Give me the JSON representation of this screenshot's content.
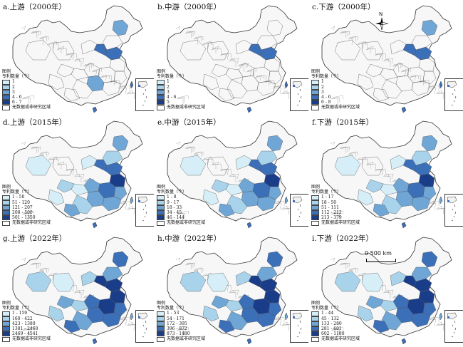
{
  "figure": {
    "panels": [
      {
        "id": "a",
        "title": "a.上游（2000年）",
        "legend_head": [
          "图例",
          "专利数量（个）"
        ],
        "classes": [
          "1",
          "2",
          "3",
          "4 - 6",
          "6 - 7"
        ],
        "nodata": "无数据或非研究区域",
        "level": 0,
        "palette": [
          "#d6eef7",
          "#a8d3eb",
          "#6fa6d6",
          "#3b6fb8",
          "#1a3d8a"
        ]
      },
      {
        "id": "b",
        "title": "b.中游（2000年）",
        "legend_head": [
          "图例",
          "专利数量（个）"
        ],
        "classes": [
          "1",
          "2",
          "3",
          "4 - 6",
          "5"
        ],
        "nodata": "无数据或非研究区域",
        "level": 0,
        "palette": [
          "#d6eef7",
          "#a8d3eb",
          "#6fa6d6",
          "#3b6fb8",
          "#1a3d8a"
        ]
      },
      {
        "id": "c",
        "title": "c.下游（2000年）",
        "legend_head": [
          "图例",
          "专利数量（个）"
        ],
        "classes": [
          "1",
          "2",
          "3",
          "4 - 6",
          "6 - 8"
        ],
        "nodata": "无数据或非研究区域",
        "level": 0,
        "palette": [
          "#d6eef7",
          "#a8d3eb",
          "#6fa6d6",
          "#3b6fb8",
          "#1a3d8a"
        ]
      },
      {
        "id": "d",
        "title": "d.上游（2015年）",
        "legend_head": [
          "图例",
          "专利数量（个）"
        ],
        "classes": [
          "1 - 50",
          "51 - 120",
          "121 - 207",
          "208 - 500",
          "501 - 1350"
        ],
        "nodata": "无数据或非研究区域",
        "level": 2,
        "palette": [
          "#d6eef7",
          "#a8d3eb",
          "#6fa6d6",
          "#3b6fb8",
          "#1a3d8a"
        ]
      },
      {
        "id": "e",
        "title": "e.中游（2015年）",
        "legend_head": [
          "图例",
          "专利数量（个）"
        ],
        "classes": [
          "1 - 8",
          "9 - 17",
          "18 - 33",
          "34 - 45",
          "46 - 144"
        ],
        "nodata": "无数据或非研究区域",
        "level": 2,
        "palette": [
          "#d6eef7",
          "#a8d3eb",
          "#6fa6d6",
          "#3b6fb8",
          "#1a3d8a"
        ]
      },
      {
        "id": "f",
        "title": "f.下游（2015年）",
        "legend_head": [
          "图例",
          "专利数量（个）"
        ],
        "classes": [
          "1 - 17",
          "18 - 50",
          "51 - 111",
          "112 - 212",
          "213 - 379"
        ],
        "nodata": "无数据或非研究区域",
        "level": 2,
        "palette": [
          "#d6eef7",
          "#a8d3eb",
          "#6fa6d6",
          "#3b6fb8",
          "#1a3d8a"
        ]
      },
      {
        "id": "g",
        "title": "g.上游（2022年）",
        "legend_head": [
          "图例",
          "专利数量（个）"
        ],
        "classes": [
          "1 - 159",
          "160 - 422",
          "423 - 1380",
          "1381 - 2468",
          "2469 - 4541"
        ],
        "nodata": "无数据或非研究区域",
        "level": 3,
        "palette": [
          "#d6eef7",
          "#a8d3eb",
          "#6fa6d6",
          "#3b6fb8",
          "#1a3d8a"
        ]
      },
      {
        "id": "h",
        "title": "h.中游（2022年）",
        "legend_head": [
          "图例",
          "专利数量（个）"
        ],
        "classes": [
          "1 - 53",
          "54 - 171",
          "172 - 395",
          "396 - 872",
          "873 - 1480"
        ],
        "nodata": "无数据或非研究区域",
        "level": 3,
        "palette": [
          "#d6eef7",
          "#a8d3eb",
          "#6fa6d6",
          "#3b6fb8",
          "#1a3d8a"
        ]
      },
      {
        "id": "i",
        "title": "i.下游（2022年）",
        "legend_head": [
          "图例",
          "专利数量（个）"
        ],
        "classes": [
          "1 - 44",
          "45 - 132",
          "133 - 280",
          "281 - 601",
          "602 - 1180"
        ],
        "nodata": "无数据或非研究区域",
        "level": 3,
        "palette": [
          "#d6eef7",
          "#a8d3eb",
          "#6fa6d6",
          "#3b6fb8",
          "#1a3d8a"
        ]
      }
    ],
    "compass_label": "N",
    "scale_label": "0    500 km"
  }
}
